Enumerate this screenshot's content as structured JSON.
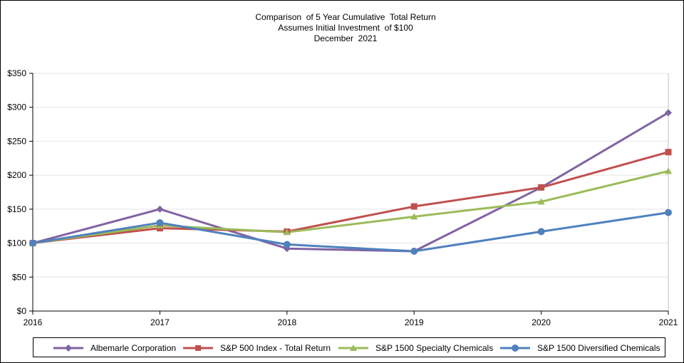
{
  "chart_data": {
    "type": "line",
    "title_lines": [
      "Comparison  of 5 Year Cumulative  Total Return",
      "Assumes Initial Investment  of $100",
      "December  2021"
    ],
    "xlabel": "",
    "ylabel": "",
    "categories": [
      "2016",
      "2017",
      "2018",
      "2019",
      "2020",
      "2021"
    ],
    "ylim": [
      0,
      350
    ],
    "yticks": [
      0,
      50,
      100,
      150,
      200,
      250,
      300,
      350
    ],
    "ytick_labels": [
      "$0",
      "$50",
      "$100",
      "$150",
      "$200",
      "$250",
      "$300",
      "$350"
    ],
    "grid": true,
    "legend_position": "bottom",
    "series": [
      {
        "name": "Albemarle Corporation",
        "color": "#8064A2",
        "marker": "diamond",
        "values": [
          100,
          150,
          92,
          88,
          182,
          292
        ]
      },
      {
        "name": "S&P 500 Index - Total Return",
        "color": "#C0504D",
        "marker": "square",
        "values": [
          100,
          122,
          117,
          154,
          182,
          234
        ]
      },
      {
        "name": "S&P 1500 Specialty Chemicals",
        "color": "#9BBB59",
        "marker": "triangle",
        "values": [
          100,
          126,
          116,
          139,
          161,
          206
        ]
      },
      {
        "name": "S&P 1500 Diversified Chemicals",
        "color": "#4F81BD",
        "marker": "circle",
        "values": [
          100,
          130,
          98,
          88,
          117,
          145
        ]
      }
    ]
  }
}
